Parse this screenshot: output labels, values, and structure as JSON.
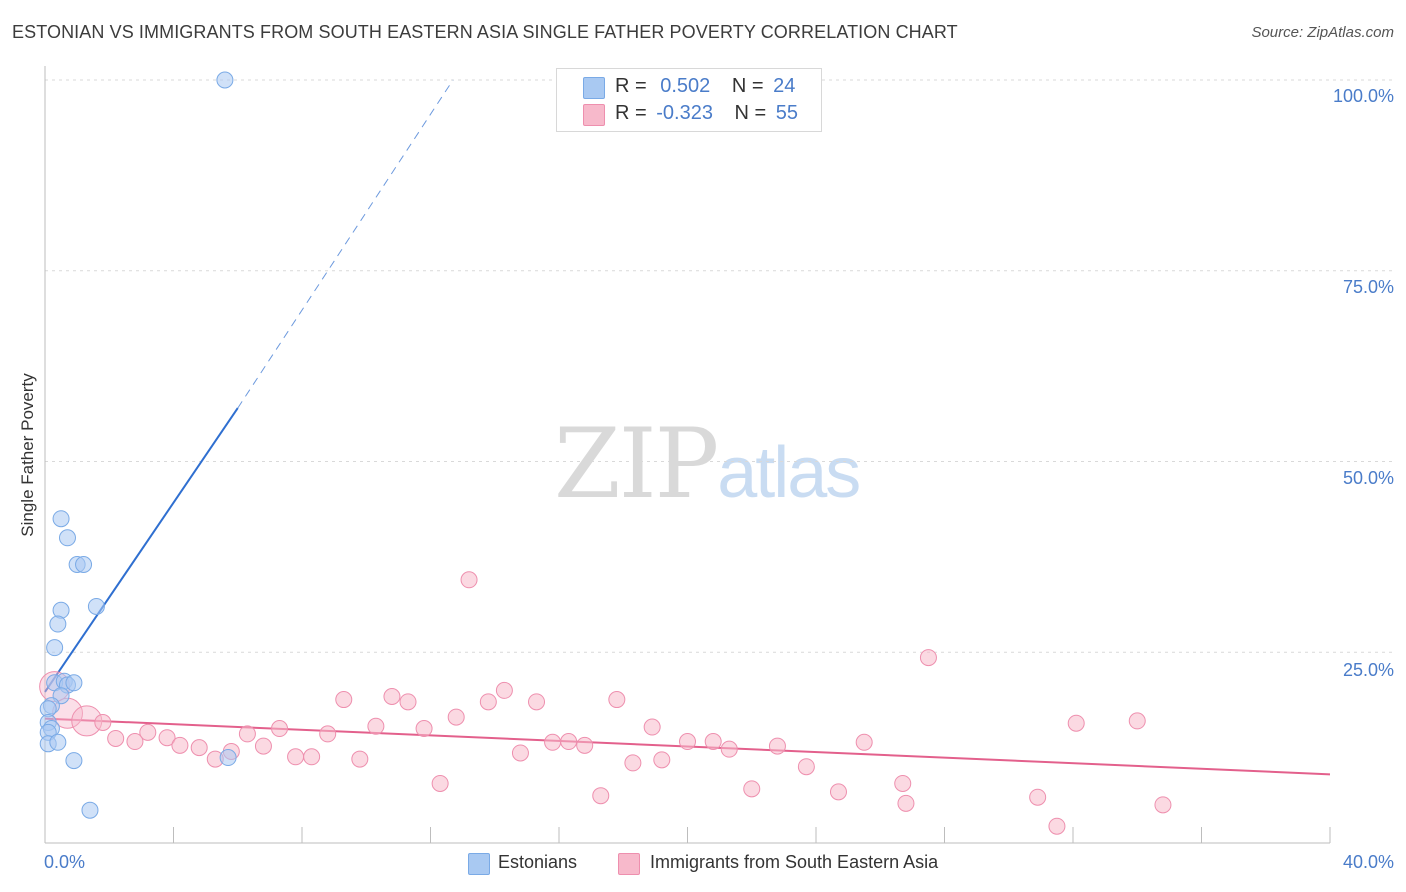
{
  "chart_data": {
    "type": "scatter",
    "title": "ESTONIAN VS IMMIGRANTS FROM SOUTH EASTERN ASIA SINGLE FATHER POVERTY CORRELATION CHART",
    "source": "Source: ZipAtlas.com",
    "xlabel": "",
    "ylabel": "Single Father Poverty",
    "xlim": [
      0,
      40
    ],
    "ylim": [
      0,
      100
    ],
    "x_tick_labels": [
      "0.0%",
      "40.0%"
    ],
    "y_ticks": [
      25,
      50,
      75,
      100
    ],
    "y_tick_labels": [
      "25.0%",
      "50.0%",
      "75.0%",
      "100.0%"
    ],
    "watermark": {
      "zip": "ZIP",
      "atlas": "atlas"
    },
    "legend_stats": [
      {
        "r_label": "R =",
        "r": "0.502",
        "n_label": "N =",
        "n": "24",
        "color": "#a9c9f2"
      },
      {
        "r_label": "R =",
        "r": "-0.323",
        "n_label": "N =",
        "n": "55",
        "color": "#f7b9cb"
      }
    ],
    "series": [
      {
        "name": "Estonians",
        "color": "#7aaae6",
        "fill": "#a9c9f2",
        "trend": {
          "x0": 0.0,
          "y0": 19.8,
          "x1": 6.0,
          "y1": 57.0,
          "dash_x1": 12.7,
          "dash_y1": 100.0,
          "line_color": "#2f6fd0"
        },
        "points": [
          {
            "x": 5.6,
            "y": 100.0
          },
          {
            "x": 0.5,
            "y": 42.5
          },
          {
            "x": 0.7,
            "y": 40.0
          },
          {
            "x": 1.0,
            "y": 36.5
          },
          {
            "x": 1.2,
            "y": 36.5
          },
          {
            "x": 1.6,
            "y": 31.0
          },
          {
            "x": 0.5,
            "y": 30.5
          },
          {
            "x": 0.4,
            "y": 28.7
          },
          {
            "x": 0.3,
            "y": 25.6
          },
          {
            "x": 0.3,
            "y": 21.0
          },
          {
            "x": 0.6,
            "y": 21.2
          },
          {
            "x": 0.7,
            "y": 20.7
          },
          {
            "x": 0.9,
            "y": 21.0
          },
          {
            "x": 0.5,
            "y": 19.3
          },
          {
            "x": 0.2,
            "y": 18.0
          },
          {
            "x": 0.1,
            "y": 17.6
          },
          {
            "x": 0.1,
            "y": 15.8
          },
          {
            "x": 0.2,
            "y": 15.0
          },
          {
            "x": 0.1,
            "y": 14.5
          },
          {
            "x": 0.1,
            "y": 13.0
          },
          {
            "x": 0.4,
            "y": 13.2
          },
          {
            "x": 0.9,
            "y": 10.8
          },
          {
            "x": 1.4,
            "y": 4.3
          },
          {
            "x": 5.7,
            "y": 11.2
          }
        ]
      },
      {
        "name": "Immigrants from South Eastern Asia",
        "color": "#ee8fae",
        "fill": "#f7b9cb",
        "trend": {
          "x0": 0.0,
          "y0": 16.3,
          "x1": 40.0,
          "y1": 9.0,
          "line_color": "#e3608c"
        },
        "points": [
          {
            "x": 0.3,
            "y": 20.5,
            "big": true
          },
          {
            "x": 0.7,
            "y": 17.0,
            "big": true
          },
          {
            "x": 1.3,
            "y": 16.0,
            "big": true
          },
          {
            "x": 1.8,
            "y": 15.8
          },
          {
            "x": 2.2,
            "y": 13.7
          },
          {
            "x": 2.8,
            "y": 13.3
          },
          {
            "x": 3.2,
            "y": 14.5
          },
          {
            "x": 3.8,
            "y": 13.8
          },
          {
            "x": 4.2,
            "y": 12.8
          },
          {
            "x": 4.8,
            "y": 12.5
          },
          {
            "x": 5.3,
            "y": 11.0
          },
          {
            "x": 5.8,
            "y": 12.0
          },
          {
            "x": 6.3,
            "y": 14.3
          },
          {
            "x": 6.8,
            "y": 12.7
          },
          {
            "x": 7.3,
            "y": 15.0
          },
          {
            "x": 7.8,
            "y": 11.3
          },
          {
            "x": 8.3,
            "y": 11.3
          },
          {
            "x": 8.8,
            "y": 14.3
          },
          {
            "x": 9.3,
            "y": 18.8
          },
          {
            "x": 9.8,
            "y": 11.0
          },
          {
            "x": 10.3,
            "y": 15.3
          },
          {
            "x": 10.8,
            "y": 19.2
          },
          {
            "x": 11.3,
            "y": 18.5
          },
          {
            "x": 11.8,
            "y": 15.0
          },
          {
            "x": 12.3,
            "y": 7.8
          },
          {
            "x": 12.8,
            "y": 16.5
          },
          {
            "x": 13.2,
            "y": 34.5
          },
          {
            "x": 13.8,
            "y": 18.5
          },
          {
            "x": 14.3,
            "y": 20.0
          },
          {
            "x": 14.8,
            "y": 11.8
          },
          {
            "x": 15.3,
            "y": 18.5
          },
          {
            "x": 15.8,
            "y": 13.2
          },
          {
            "x": 16.3,
            "y": 13.3
          },
          {
            "x": 16.8,
            "y": 12.8
          },
          {
            "x": 17.3,
            "y": 6.2
          },
          {
            "x": 17.8,
            "y": 18.8
          },
          {
            "x": 18.3,
            "y": 10.5
          },
          {
            "x": 18.9,
            "y": 15.2
          },
          {
            "x": 19.2,
            "y": 10.9
          },
          {
            "x": 20.0,
            "y": 13.3
          },
          {
            "x": 20.8,
            "y": 13.3
          },
          {
            "x": 21.3,
            "y": 12.3
          },
          {
            "x": 22.0,
            "y": 7.1
          },
          {
            "x": 22.8,
            "y": 12.7
          },
          {
            "x": 23.7,
            "y": 10.0
          },
          {
            "x": 24.7,
            "y": 6.7
          },
          {
            "x": 25.5,
            "y": 13.2
          },
          {
            "x": 26.7,
            "y": 7.8
          },
          {
            "x": 26.8,
            "y": 5.2
          },
          {
            "x": 27.5,
            "y": 24.3
          },
          {
            "x": 30.9,
            "y": 6.0
          },
          {
            "x": 31.5,
            "y": 2.2
          },
          {
            "x": 32.1,
            "y": 15.7
          },
          {
            "x": 34.0,
            "y": 16.0
          },
          {
            "x": 34.8,
            "y": 5.0
          }
        ]
      }
    ]
  }
}
